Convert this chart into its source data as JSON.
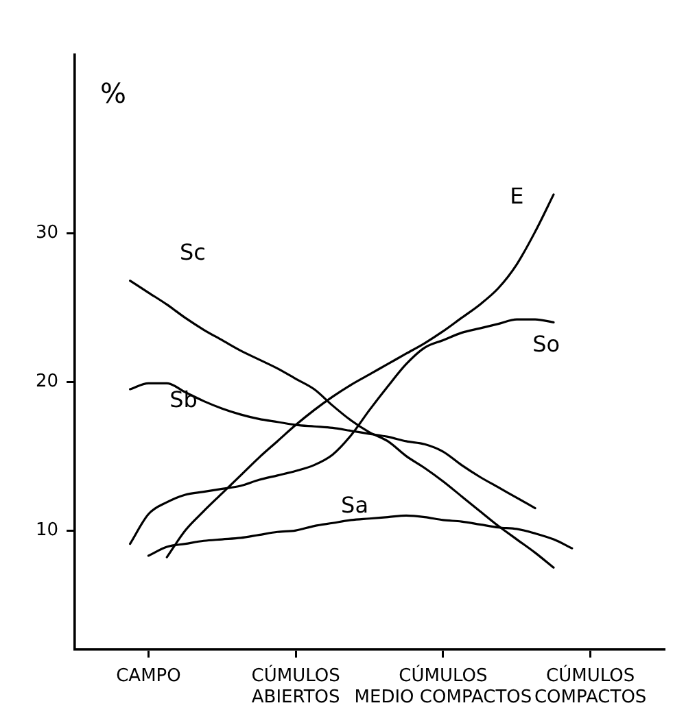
{
  "chart_data": {
    "type": "line",
    "ylabel": "%",
    "ylim": [
      2,
      42
    ],
    "yticks": [
      10,
      20,
      30
    ],
    "categories": [
      null,
      null,
      null,
      null,
      "CAMPO",
      null,
      null,
      null,
      null,
      null,
      null,
      null,
      "CÚMULOS\nABIERTOS",
      null,
      null,
      null,
      null,
      null,
      null,
      null,
      "CÚMULOS\nMEDIO COMPACTOS",
      null,
      null,
      null,
      null,
      null,
      null,
      null,
      "CÚMULOS\nCOMPACTOS",
      null,
      null,
      null,
      null
    ],
    "grid": false,
    "legend": false,
    "marker": "none",
    "line_style": "solid",
    "series": [
      {
        "name": "Sc",
        "color": "#000000",
        "values": [
          null,
          null,
          null,
          26.8,
          26.0,
          25.2,
          24.3,
          23.5,
          22.8,
          22.1,
          21.5,
          20.9,
          20.2,
          19.5,
          18.4,
          17.4,
          16.6,
          16.0,
          15.0,
          14.2,
          13.3,
          12.3,
          11.3,
          10.3,
          9.4,
          8.5,
          7.5,
          null,
          null,
          null,
          null,
          null,
          null
        ]
      },
      {
        "name": "Sb",
        "color": "#000000",
        "values": [
          null,
          null,
          null,
          19.5,
          19.9,
          19.9,
          19.3,
          18.7,
          18.2,
          17.8,
          17.5,
          17.3,
          17.1,
          17.0,
          16.9,
          16.7,
          16.5,
          16.3,
          16.0,
          15.8,
          15.3,
          14.4,
          13.6,
          12.9,
          12.2,
          11.5,
          null,
          null,
          null,
          null,
          null,
          null,
          null
        ]
      },
      {
        "name": "E",
        "color": "#000000",
        "values": [
          null,
          null,
          null,
          null,
          null,
          8.2,
          10.0,
          11.3,
          12.5,
          13.7,
          14.9,
          16.0,
          17.1,
          18.1,
          19.0,
          19.8,
          20.5,
          21.2,
          21.9,
          22.6,
          23.4,
          24.3,
          25.2,
          26.3,
          27.9,
          30.1,
          32.6,
          null,
          null,
          null,
          null,
          null,
          null
        ]
      },
      {
        "name": "So",
        "color": "#000000",
        "values": [
          null,
          null,
          null,
          9.1,
          11.1,
          11.9,
          12.4,
          12.6,
          12.8,
          13.0,
          13.4,
          13.7,
          14.0,
          14.4,
          15.1,
          16.4,
          18.1,
          19.7,
          21.2,
          22.3,
          22.8,
          23.3,
          23.6,
          23.9,
          24.2,
          24.2,
          24.0,
          null,
          null,
          null,
          null,
          null,
          null
        ]
      },
      {
        "name": "Sa",
        "color": "#000000",
        "values": [
          null,
          null,
          null,
          null,
          8.3,
          8.9,
          9.1,
          9.3,
          9.4,
          9.5,
          9.7,
          9.9,
          10.0,
          10.3,
          10.5,
          10.7,
          10.8,
          10.9,
          11.0,
          10.9,
          10.7,
          10.6,
          10.4,
          10.2,
          10.1,
          9.8,
          9.4,
          8.8,
          null,
          null,
          null,
          null,
          null
        ]
      }
    ]
  }
}
